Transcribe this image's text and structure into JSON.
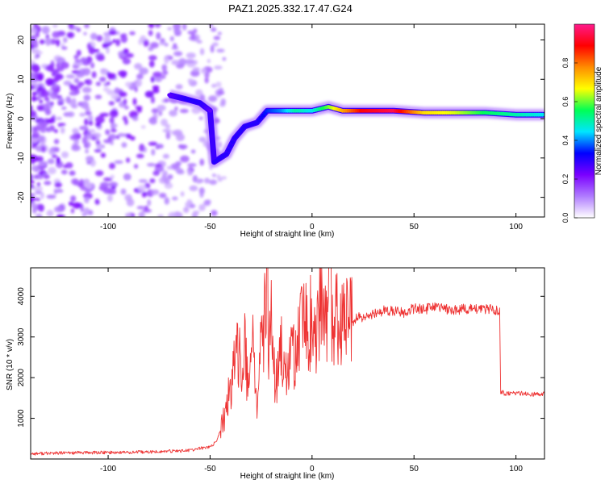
{
  "title": "PAZ1.2025.332.17.47.G24",
  "chart_data": [
    {
      "type": "heatmap",
      "name": "spectrogram",
      "xlabel": "Height of straight line (km)",
      "ylabel": "Frequency (Hz)",
      "xlim": [
        -138,
        114
      ],
      "ylim": [
        -25,
        24
      ],
      "xticks": [
        -100,
        -50,
        0,
        50,
        100
      ],
      "yticks": [
        -20,
        -10,
        0,
        10,
        20
      ],
      "colorbar": {
        "label": "Normalized spectral amplitude",
        "range": [
          0,
          1
        ],
        "ticks": [
          "0.0",
          "0.2",
          "0.4",
          "0.6",
          "0.8"
        ],
        "tick_values": [
          0.0,
          0.2,
          0.4,
          0.6,
          0.8
        ],
        "colors": [
          "#ffffff",
          "#b07cff",
          "#7a00ff",
          "#0000ff",
          "#00e5ff",
          "#00ff55",
          "#ffff00",
          "#ff8c00",
          "#ff0000",
          "#ff1a8c"
        ]
      },
      "ridge": {
        "description_values": "frequency of the dominant spectral ridge vs height",
        "points": [
          {
            "x": -70,
            "y": 6,
            "amp": 0.25
          },
          {
            "x": -62,
            "y": 5,
            "amp": 0.3
          },
          {
            "x": -55,
            "y": 4,
            "amp": 0.3
          },
          {
            "x": -50,
            "y": 2,
            "amp": 0.25
          },
          {
            "x": -48,
            "y": -11,
            "amp": 0.3
          },
          {
            "x": -42,
            "y": -9,
            "amp": 0.3
          },
          {
            "x": -38,
            "y": -5,
            "amp": 0.3
          },
          {
            "x": -33,
            "y": -2,
            "amp": 0.3
          },
          {
            "x": -27,
            "y": -1,
            "amp": 0.3
          },
          {
            "x": -22,
            "y": 2,
            "amp": 0.35
          },
          {
            "x": -15,
            "y": 2,
            "amp": 0.4
          },
          {
            "x": -8,
            "y": 2,
            "amp": 0.5
          },
          {
            "x": 0,
            "y": 2,
            "amp": 0.45
          },
          {
            "x": 8,
            "y": 3,
            "amp": 0.6
          },
          {
            "x": 15,
            "y": 2,
            "amp": 0.75
          },
          {
            "x": 25,
            "y": 2,
            "amp": 0.9
          },
          {
            "x": 40,
            "y": 2,
            "amp": 0.95
          },
          {
            "x": 55,
            "y": 1.5,
            "amp": 0.7
          },
          {
            "x": 70,
            "y": 1.5,
            "amp": 0.65
          },
          {
            "x": 85,
            "y": 1.5,
            "amp": 0.55
          },
          {
            "x": 100,
            "y": 1,
            "amp": 0.5
          },
          {
            "x": 114,
            "y": 1,
            "amp": 0.45
          }
        ]
      }
    },
    {
      "type": "line",
      "name": "snr",
      "xlabel": "Height of straight line (km)",
      "ylabel": "SNR (10 * v/v)",
      "xlim": [
        -138,
        114
      ],
      "ylim": [
        0,
        4700
      ],
      "xticks": [
        -100,
        -50,
        0,
        50,
        100
      ],
      "yticks": [
        1000,
        2000,
        3000,
        4000
      ],
      "color": "#ee3333",
      "series": [
        {
          "name": "SNR",
          "x": [
            -138,
            -120,
            -100,
            -80,
            -70,
            -60,
            -55,
            -50,
            -47,
            -45,
            -42,
            -40,
            -38,
            -36,
            -34,
            -33,
            -31,
            -29,
            -27,
            -25,
            -23,
            -22,
            -21,
            -20,
            -18,
            -15,
            -12,
            -10,
            -8,
            -6,
            -4,
            -2,
            0,
            2,
            4,
            6,
            8,
            9,
            10,
            12,
            14,
            16,
            18,
            20,
            22,
            25,
            30,
            35,
            40,
            45,
            50,
            55,
            60,
            65,
            70,
            75,
            80,
            85,
            90,
            92,
            92.5,
            93,
            95,
            100,
            105,
            110,
            114
          ],
          "y": [
            130,
            150,
            160,
            170,
            190,
            210,
            260,
            300,
            420,
            700,
            1200,
            1800,
            2200,
            2700,
            2500,
            2800,
            1400,
            3300,
            1200,
            2700,
            3500,
            4200,
            2500,
            3300,
            1800,
            2600,
            1900,
            2700,
            2600,
            3000,
            3400,
            3100,
            3500,
            2800,
            3700,
            3200,
            3900,
            4600,
            3000,
            3500,
            3300,
            3400,
            3400,
            3300,
            3500,
            3450,
            3550,
            3650,
            3650,
            3600,
            3700,
            3680,
            3720,
            3700,
            3650,
            3700,
            3680,
            3680,
            3660,
            3650,
            1600,
            1650,
            1600,
            1620,
            1600,
            1590,
            1600
          ]
        }
      ]
    }
  ]
}
